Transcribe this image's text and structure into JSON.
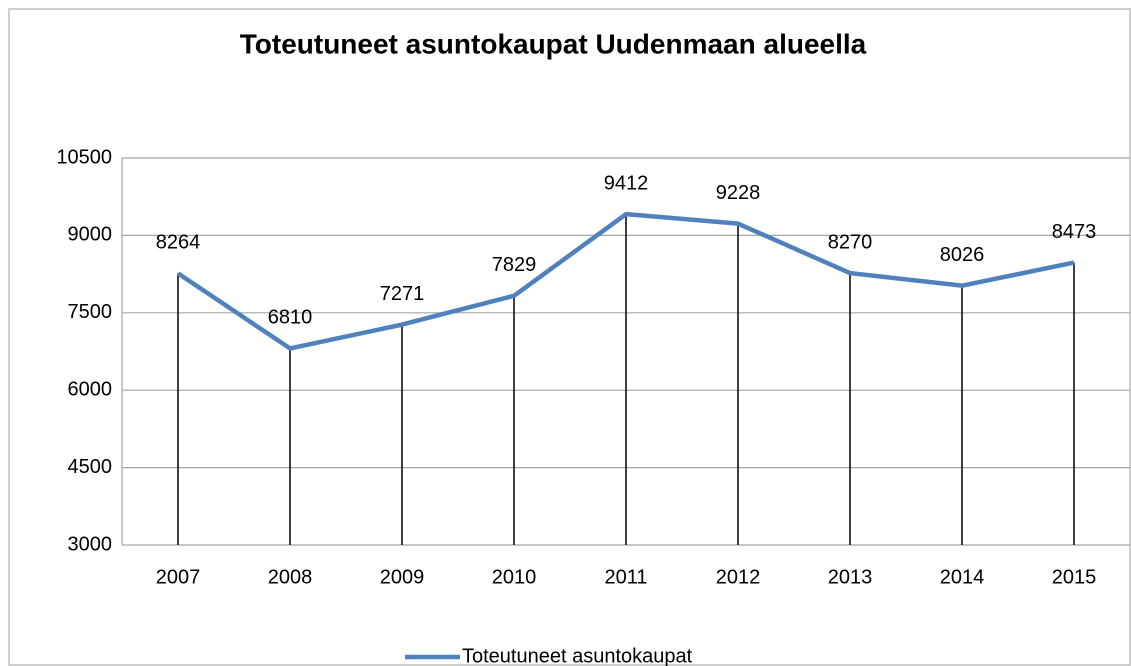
{
  "chart_data": {
    "type": "line",
    "title": "Toteutuneet asuntokaupat Uudenmaan alueella",
    "categories": [
      "2007",
      "2008",
      "2009",
      "2010",
      "2011",
      "2012",
      "2013",
      "2014",
      "2015"
    ],
    "series": [
      {
        "name": "Toteutuneet asuntokaupat",
        "color": "#4f81bd",
        "values": [
          8264,
          6810,
          7271,
          7829,
          9412,
          9228,
          8270,
          8026,
          8473
        ]
      }
    ],
    "ylim": [
      3000,
      10500
    ],
    "yticks": [
      3000,
      4500,
      6000,
      7500,
      9000,
      10500
    ],
    "grid": true,
    "drop_lines": true,
    "legend": "bottom"
  }
}
